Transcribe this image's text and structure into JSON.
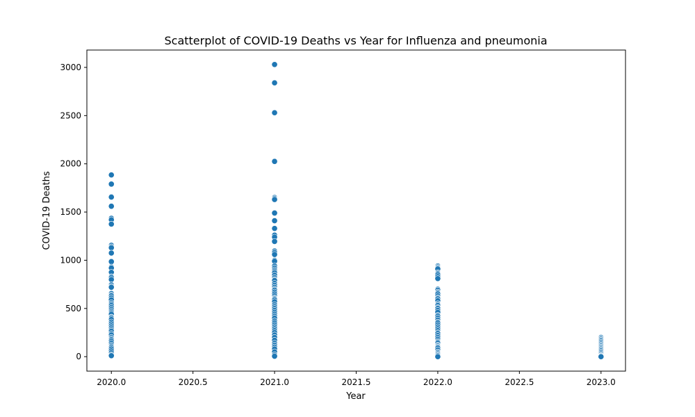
{
  "chart_data": {
    "type": "scatter",
    "title": "Scatterplot of COVID-19 Deaths vs Year for Influenza and pneumonia",
    "xlabel": "Year",
    "ylabel": "COVID-19 Deaths",
    "xlim": [
      2019.85,
      2023.15
    ],
    "ylim": [
      -150,
      3180
    ],
    "x_ticks": [
      2020.0,
      2020.5,
      2021.0,
      2021.5,
      2022.0,
      2022.5,
      2023.0
    ],
    "x_tick_labels": [
      "2020.0",
      "2020.5",
      "2021.0",
      "2021.5",
      "2022.0",
      "2022.5",
      "2023.0"
    ],
    "y_ticks": [
      0,
      500,
      1000,
      1500,
      2000,
      2500,
      3000
    ],
    "y_tick_labels": [
      "0",
      "500",
      "1000",
      "1500",
      "2000",
      "2500",
      "3000"
    ],
    "grid": false,
    "marker_color": "#1f77b4",
    "points": [
      {
        "year": 2020,
        "deaths": [
          1885,
          1790,
          1660,
          1655,
          1560,
          1435,
          1420,
          1375,
          1155,
          1140,
          1130,
          1075,
          990,
          985,
          930,
          920,
          875,
          830,
          820,
          800,
          745,
          730,
          720,
          660,
          655,
          640,
          630,
          610,
          590,
          560,
          545,
          530,
          510,
          490,
          470,
          455,
          440,
          410,
          400,
          385,
          360,
          340,
          320,
          300,
          280,
          265,
          240,
          225,
          200,
          185,
          175,
          160,
          140,
          120,
          105,
          95,
          80,
          60,
          40,
          20,
          10
        ]
      },
      {
        "year": 2021,
        "deaths": [
          3030,
          2840,
          2530,
          2025,
          1650,
          1640,
          1630,
          1490,
          1410,
          1330,
          1260,
          1240,
          1195,
          1095,
          1080,
          1060,
          1000,
          990,
          940,
          920,
          900,
          885,
          870,
          845,
          820,
          800,
          790,
          760,
          740,
          720,
          700,
          690,
          670,
          650,
          630,
          610,
          600,
          590,
          570,
          540,
          520,
          500,
          480,
          460,
          440,
          420,
          400,
          370,
          350,
          330,
          310,
          290,
          270,
          250,
          225,
          200,
          170,
          140,
          120,
          100,
          80,
          50,
          20,
          5
        ]
      },
      {
        "year": 2022,
        "deaths": [
          940,
          930,
          920,
          910,
          870,
          860,
          850,
          830,
          810,
          700,
          690,
          670,
          660,
          650,
          630,
          610,
          600,
          580,
          550,
          540,
          530,
          510,
          500,
          480,
          460,
          430,
          420,
          400,
          380,
          360,
          350,
          330,
          310,
          290,
          270,
          250,
          240,
          220,
          200,
          180,
          160,
          150,
          140,
          120,
          110,
          100,
          90,
          70,
          50,
          40,
          30,
          20,
          10,
          0
        ]
      },
      {
        "year": 2023,
        "deaths": [
          200,
          190,
          180,
          170,
          160,
          150,
          140,
          130,
          120,
          110,
          100,
          90,
          80,
          70,
          60,
          50,
          40,
          30,
          20,
          10,
          5,
          0
        ]
      }
    ]
  }
}
